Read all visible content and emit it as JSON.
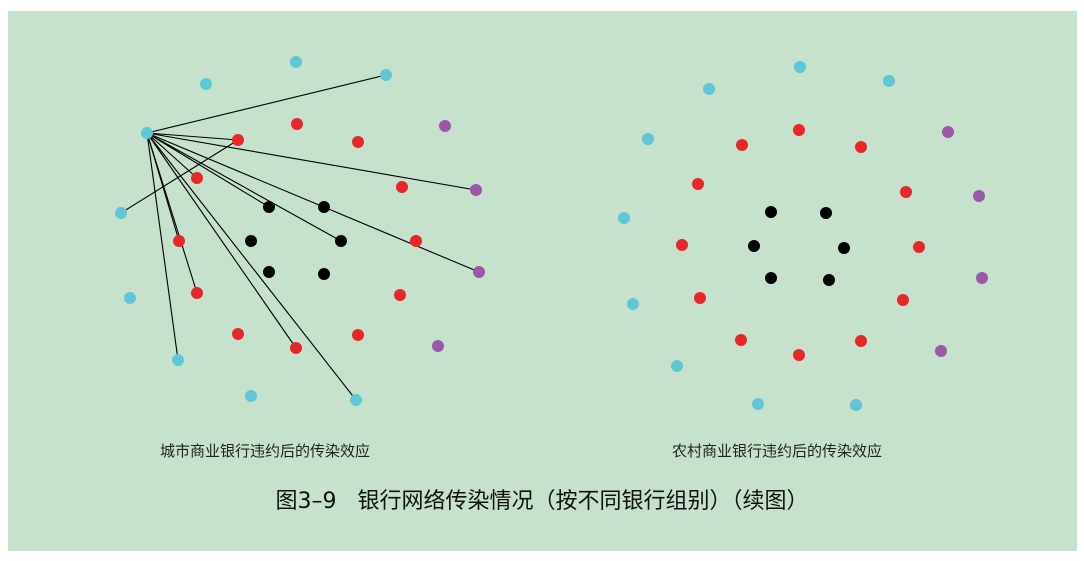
{
  "colors": {
    "background": "#c6e2cd",
    "cyan": "#5fc7d6",
    "red": "#e8272a",
    "purple": "#9a58a6",
    "black": "#000000",
    "edge": "#000000"
  },
  "networks": [
    {
      "label": "城市商业银行违约后的传染效应",
      "default_source": "c_src",
      "nodes": [
        {
          "id": "c_top",
          "type": "cyan"
        },
        {
          "id": "c_nw",
          "type": "cyan"
        },
        {
          "id": "c_ne",
          "type": "cyan"
        },
        {
          "id": "c_src",
          "type": "cyan"
        },
        {
          "id": "c_w",
          "type": "cyan"
        },
        {
          "id": "c_sw",
          "type": "cyan"
        },
        {
          "id": "c_ssw",
          "type": "cyan"
        },
        {
          "id": "c_s",
          "type": "cyan"
        },
        {
          "id": "c_se",
          "type": "cyan"
        },
        {
          "id": "r1",
          "type": "red"
        },
        {
          "id": "r2",
          "type": "red"
        },
        {
          "id": "r3",
          "type": "red"
        },
        {
          "id": "r4",
          "type": "red"
        },
        {
          "id": "r5",
          "type": "red"
        },
        {
          "id": "r6",
          "type": "red"
        },
        {
          "id": "r7",
          "type": "red"
        },
        {
          "id": "r8",
          "type": "red"
        },
        {
          "id": "r9",
          "type": "red"
        },
        {
          "id": "r10",
          "type": "red"
        },
        {
          "id": "r11",
          "type": "red"
        },
        {
          "id": "r12",
          "type": "red"
        },
        {
          "id": "p1",
          "type": "purple"
        },
        {
          "id": "p2",
          "type": "purple"
        },
        {
          "id": "p3",
          "type": "purple"
        },
        {
          "id": "p4",
          "type": "purple"
        },
        {
          "id": "k1",
          "type": "black"
        },
        {
          "id": "k2",
          "type": "black"
        },
        {
          "id": "k3",
          "type": "black"
        },
        {
          "id": "k4",
          "type": "black"
        },
        {
          "id": "k5",
          "type": "black"
        },
        {
          "id": "k6",
          "type": "black"
        }
      ],
      "edges": [
        [
          "c_src",
          "c_ne"
        ],
        [
          "c_src",
          "p2"
        ],
        [
          "c_src",
          "p3"
        ],
        [
          "c_src",
          "c_se"
        ],
        [
          "c_src",
          "k4"
        ],
        [
          "c_src",
          "r8"
        ],
        [
          "c_src",
          "r6"
        ],
        [
          "c_src",
          "r5"
        ],
        [
          "c_src",
          "c_ssw"
        ],
        [
          "c_src",
          "r1"
        ],
        [
          "c_src",
          "r3"
        ],
        [
          "c_src",
          "k1"
        ],
        [
          "c_w",
          "r1"
        ]
      ]
    },
    {
      "label": "农村商业银行违约后的传染效应",
      "nodes": [
        {
          "id": "c_top",
          "type": "cyan"
        },
        {
          "id": "c_nw",
          "type": "cyan"
        },
        {
          "id": "c_ne",
          "type": "cyan"
        },
        {
          "id": "c_w1",
          "type": "cyan"
        },
        {
          "id": "c_w2",
          "type": "cyan"
        },
        {
          "id": "c_sw1",
          "type": "cyan"
        },
        {
          "id": "c_sw2",
          "type": "cyan"
        },
        {
          "id": "c_s1",
          "type": "cyan"
        },
        {
          "id": "c_s2",
          "type": "cyan"
        },
        {
          "id": "r1",
          "type": "red"
        },
        {
          "id": "r2",
          "type": "red"
        },
        {
          "id": "r3",
          "type": "red"
        },
        {
          "id": "r4",
          "type": "red"
        },
        {
          "id": "r5",
          "type": "red"
        },
        {
          "id": "r6",
          "type": "red"
        },
        {
          "id": "r7",
          "type": "red"
        },
        {
          "id": "r8",
          "type": "red"
        },
        {
          "id": "r9",
          "type": "red"
        },
        {
          "id": "r10",
          "type": "red"
        },
        {
          "id": "r11",
          "type": "red"
        },
        {
          "id": "r12",
          "type": "red"
        },
        {
          "id": "p1",
          "type": "purple"
        },
        {
          "id": "p2",
          "type": "purple"
        },
        {
          "id": "p3",
          "type": "purple"
        },
        {
          "id": "p4",
          "type": "purple"
        },
        {
          "id": "k1",
          "type": "black"
        },
        {
          "id": "k2",
          "type": "black"
        },
        {
          "id": "k3",
          "type": "black"
        },
        {
          "id": "k4",
          "type": "black"
        },
        {
          "id": "k5",
          "type": "black"
        },
        {
          "id": "k6",
          "type": "black"
        }
      ],
      "edges": []
    }
  ],
  "caption": "图3–9   银行网络传染情况（按不同银行组别）（续图）"
}
